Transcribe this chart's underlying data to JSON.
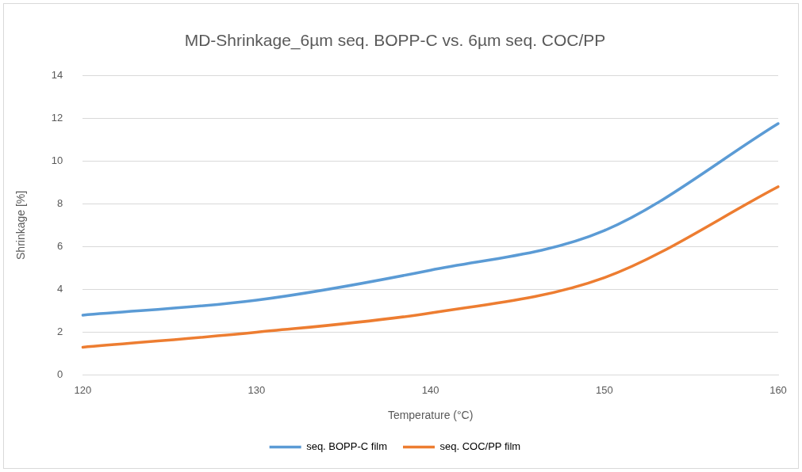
{
  "chart_data": {
    "type": "line",
    "title": "MD-Shrinkage_6µm seq. BOPP-C vs. 6µm seq. COC/PP",
    "xlabel": "Temperature (°C)",
    "ylabel": "Shrinkage [%]",
    "categories": [
      "120",
      "130",
      "140",
      "150",
      "160"
    ],
    "series": [
      {
        "name": "seq. BOPP-C film",
        "color": "#5b9bd5",
        "values": [
          2.8,
          3.5,
          4.9,
          6.75,
          11.75
        ]
      },
      {
        "name": "seq. COC/PP film",
        "color": "#ed7d31",
        "values": [
          1.3,
          2.0,
          2.9,
          4.55,
          8.8
        ]
      }
    ],
    "ylim": [
      0,
      14
    ],
    "yticks": [
      0,
      2,
      4,
      6,
      8,
      10,
      12,
      14
    ],
    "grid": "y",
    "legend": "bottom",
    "marker": "none",
    "line_style": "solid"
  }
}
